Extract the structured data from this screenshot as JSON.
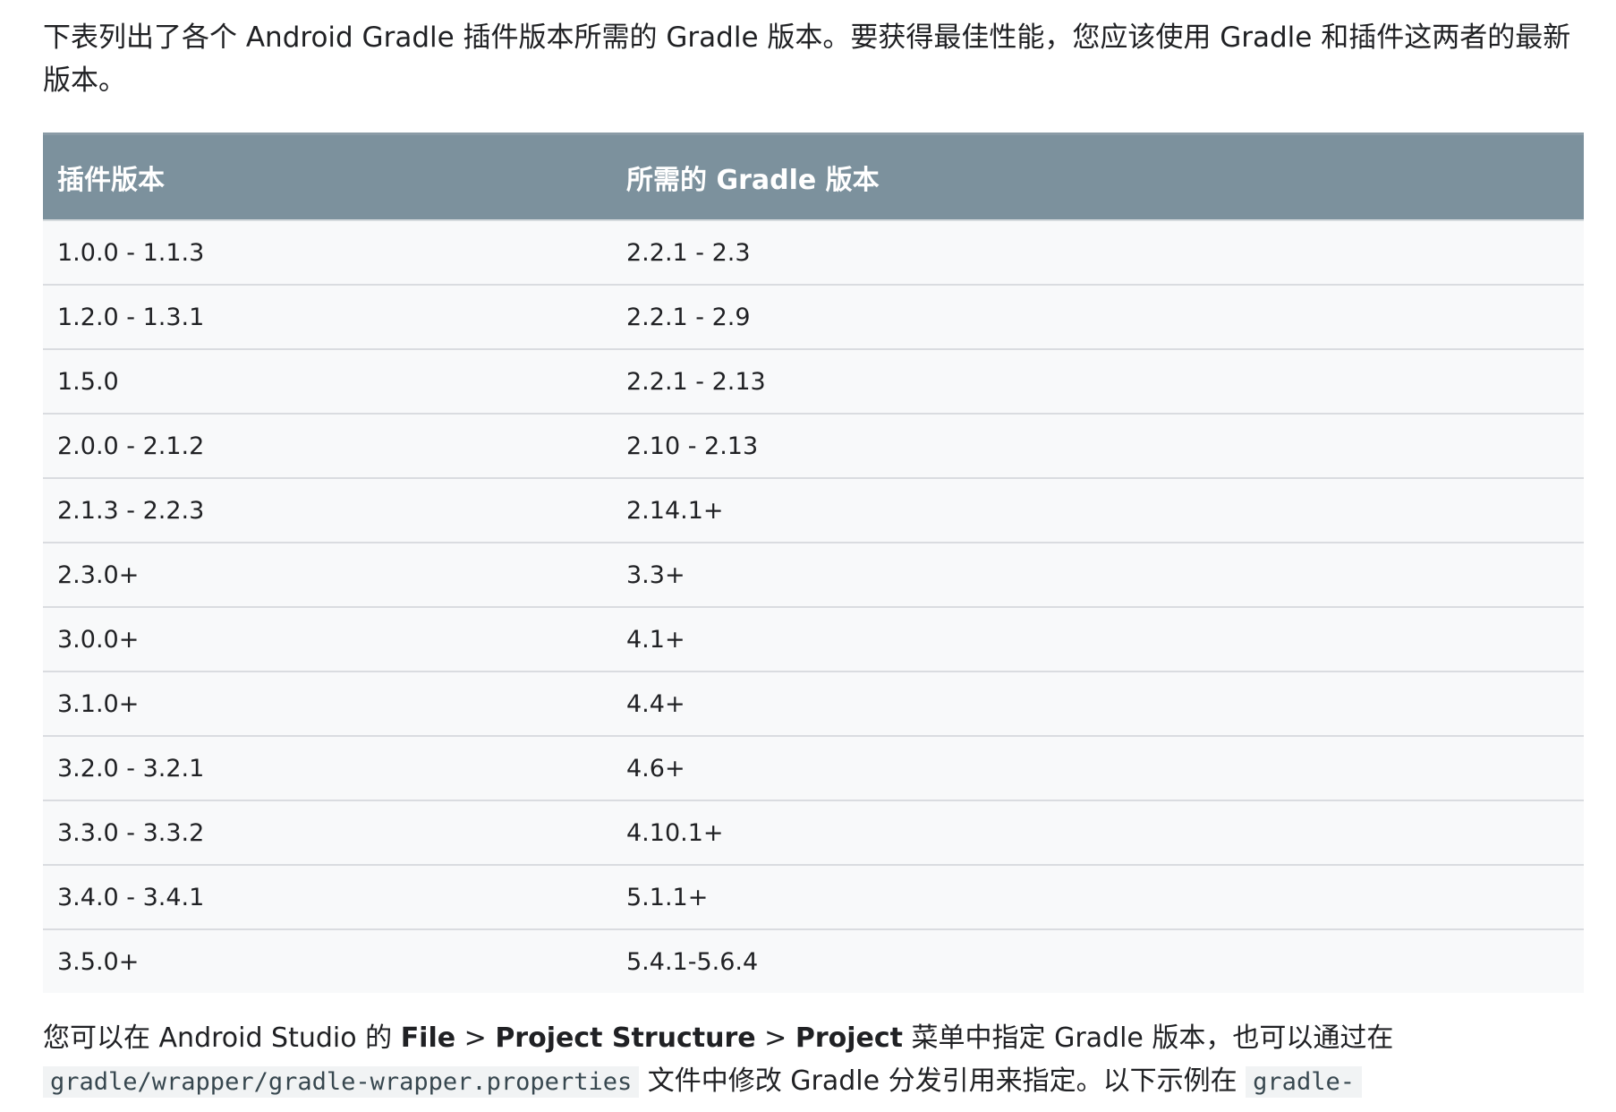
{
  "intro": {
    "text": "下表列出了各个 Android Gradle 插件版本所需的 Gradle 版本。要获得最佳性能，您应该使用 Gradle 和插件这两者的最新版本。"
  },
  "table": {
    "headers": [
      "插件版本",
      "所需的 Gradle 版本"
    ],
    "rows": [
      [
        "1.0.0 - 1.1.3",
        "2.2.1 - 2.3"
      ],
      [
        "1.2.0 - 1.3.1",
        "2.2.1 - 2.9"
      ],
      [
        "1.5.0",
        "2.2.1 - 2.13"
      ],
      [
        "2.0.0 - 2.1.2",
        "2.10 - 2.13"
      ],
      [
        "2.1.3 - 2.2.3",
        "2.14.1+"
      ],
      [
        "2.3.0+",
        "3.3+"
      ],
      [
        "3.0.0+",
        "4.1+"
      ],
      [
        "3.1.0+",
        "4.4+"
      ],
      [
        "3.2.0 - 3.2.1",
        "4.6+"
      ],
      [
        "3.3.0 - 3.3.2",
        "4.10.1+"
      ],
      [
        "3.4.0 - 3.4.1",
        "5.1.1+"
      ],
      [
        "3.5.0+",
        "5.4.1-5.6.4"
      ]
    ]
  },
  "outro": {
    "part1": "您可以在 Android Studio 的 ",
    "file": "File",
    "sep1": " > ",
    "project_structure": "Project Structure",
    "sep2": " > ",
    "project": "Project",
    "part2": " 菜单中指定 Gradle 版本，也可以通过在 ",
    "code1": "gradle/wrapper/gradle-wrapper.properties",
    "part3": " 文件中修改 Gradle 分发引用来指定。以下示例在 ",
    "code2": "gradle-"
  },
  "colors": {
    "header_bg": "#7c919d",
    "row_bg": "#f8f9fa",
    "row_border": "#dadce0",
    "code_bg": "#f1f3f4"
  }
}
